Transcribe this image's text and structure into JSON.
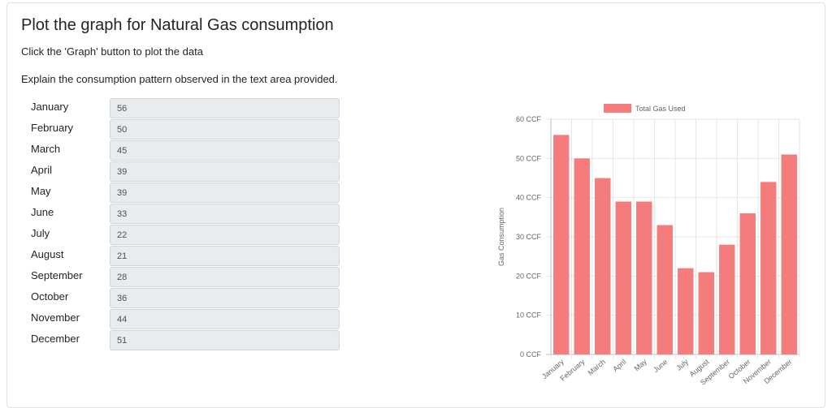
{
  "page": {
    "title": "Plot the graph for Natural Gas consumption",
    "subtitle": "Click the 'Graph' button to plot the data",
    "instructions": "Explain the consumption pattern observed in the text area provided."
  },
  "form": {
    "rows": [
      {
        "month": "January",
        "value": "56"
      },
      {
        "month": "February",
        "value": "50"
      },
      {
        "month": "March",
        "value": "45"
      },
      {
        "month": "April",
        "value": "39"
      },
      {
        "month": "May",
        "value": "39"
      },
      {
        "month": "June",
        "value": "33"
      },
      {
        "month": "July",
        "value": "22"
      },
      {
        "month": "August",
        "value": "21"
      },
      {
        "month": "September",
        "value": "28"
      },
      {
        "month": "October",
        "value": "36"
      },
      {
        "month": "November",
        "value": "44"
      },
      {
        "month": "December",
        "value": "51"
      }
    ]
  },
  "chart_data": {
    "type": "bar",
    "categories": [
      "January",
      "February",
      "March",
      "April",
      "May",
      "June",
      "July",
      "August",
      "September",
      "October",
      "November",
      "December"
    ],
    "series": [
      {
        "name": "Total Gas Used",
        "values": [
          56,
          50,
          45,
          39,
          39,
          33,
          22,
          21,
          28,
          36,
          44,
          51
        ],
        "color": "#f47c7c"
      }
    ],
    "ylabel": "Gas Consumption",
    "xlabel": "",
    "ylim": [
      0,
      60
    ],
    "yticks": [
      "0 CCF",
      "10 CCF",
      "20 CCF",
      "30 CCF",
      "40 CCF",
      "50 CCF",
      "60 CCF"
    ],
    "grid": true,
    "legend": "top"
  }
}
